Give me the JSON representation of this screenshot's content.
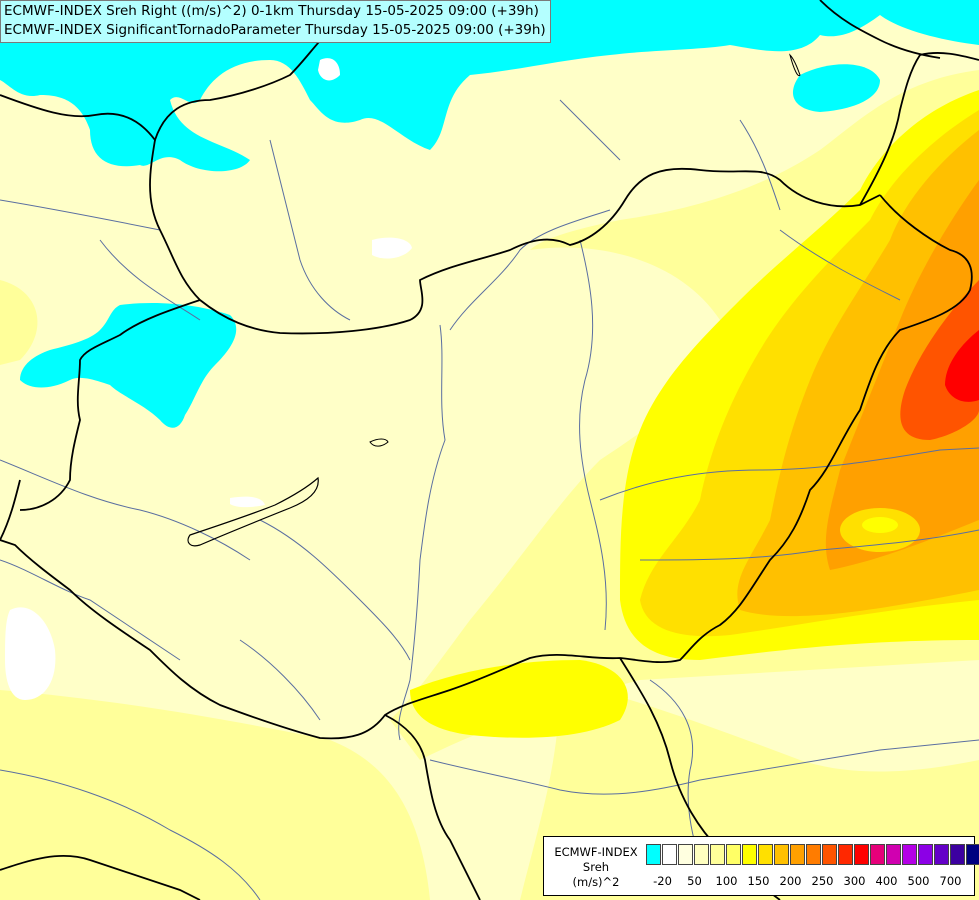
{
  "header": {
    "line1": "ECMWF-INDEX Sreh Right ((m/s)^2) 0-1km Thursday 15-05-2025 09:00 (+39h)",
    "line2": "ECMWF-INDEX SignificantTornadoParameter Thursday 15-05-2025 09:00 (+39h)"
  },
  "legend": {
    "line1": "ECMWF-INDEX",
    "line2": "Sreh",
    "line3": "(m/s)^2",
    "colors": [
      "#00ffff",
      "#ffffff",
      "#ffffe0",
      "#ffffc0",
      "#ffff9a",
      "#ffff66",
      "#ffff00",
      "#ffe000",
      "#ffc000",
      "#ffa000",
      "#ff7c00",
      "#ff5400",
      "#ff2800",
      "#ff0000",
      "#e6007a",
      "#d000b0",
      "#b400e6",
      "#8c00e6",
      "#6400c8",
      "#3c00a0",
      "#000080"
    ],
    "ticks": [
      "-20",
      "50",
      "100",
      "150",
      "200",
      "250",
      "300",
      "400",
      "500",
      "700"
    ]
  },
  "map_colors": {
    "background": "#ffffc8",
    "cyan": "#00ffff",
    "light_yellow": "#ffff9a",
    "yellow": "#ffff00",
    "gold": "#ffe000",
    "orange": "#ffc000",
    "dark_orange": "#ffa000",
    "red_orange": "#ff5400",
    "red": "#ff0000",
    "border": "#000000",
    "river": "#5a6ea0"
  }
}
